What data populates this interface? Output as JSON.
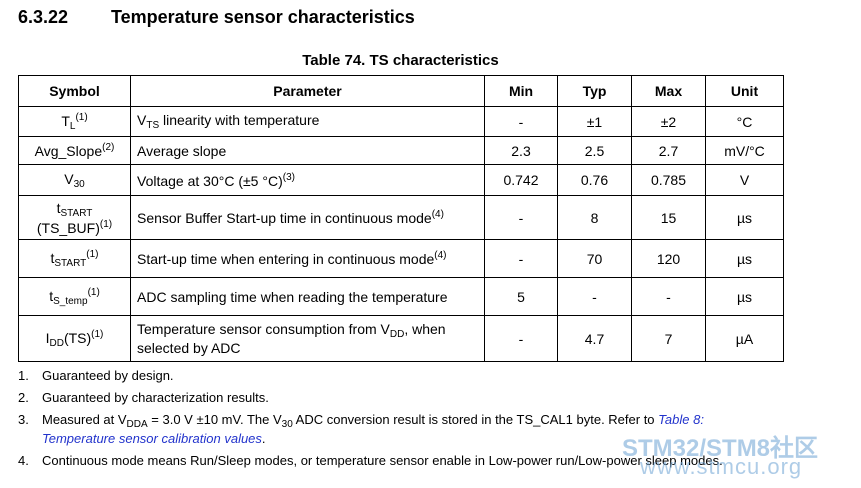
{
  "section": {
    "number": "6.3.22",
    "title": "Temperature sensor characteristics"
  },
  "table": {
    "caption": "Table 74. TS characteristics",
    "header": [
      "Symbol",
      "Parameter",
      "Min",
      "Typ",
      "Max",
      "Unit"
    ],
    "rows": [
      {
        "symbol": [
          [
            "T",
            {
              "text": "L",
              "pos": "sub"
            },
            {
              "text": "(1)",
              "pos": "sup"
            }
          ]
        ],
        "parameter": [
          [
            "V",
            {
              "text": "TS",
              "pos": "sub"
            },
            " linearity with temperature"
          ]
        ],
        "min": "-",
        "typ": "±1",
        "max": "±2",
        "unit": "°C"
      },
      {
        "symbol": [
          [
            "Avg_Slope",
            {
              "text": "(2)",
              "pos": "sup"
            }
          ]
        ],
        "parameter": [
          [
            "Average slope"
          ]
        ],
        "min": "2.3",
        "typ": "2.5",
        "max": "2.7",
        "unit": "mV/°C"
      },
      {
        "symbol": [
          [
            "V",
            {
              "text": "30",
              "pos": "sub"
            }
          ]
        ],
        "parameter": [
          [
            "Voltage at 30°C (±5 °C)",
            {
              "text": "(3)",
              "pos": "sup"
            }
          ]
        ],
        "min": "0.742",
        "typ": "0.76",
        "max": "0.785",
        "unit": "V"
      },
      {
        "symbol": [
          [
            "t",
            {
              "text": "START",
              "pos": "sub"
            }
          ],
          [
            "(TS_BUF)",
            {
              "text": "(1)",
              "pos": "sup"
            }
          ]
        ],
        "parameter": [
          [
            "Sensor Buffer Start-up time in continuous mode",
            {
              "text": "(4)",
              "pos": "sup"
            }
          ]
        ],
        "min": "-",
        "typ": "8",
        "max": "15",
        "unit": "µs"
      },
      {
        "symbol": [
          [
            "t",
            {
              "text": "START",
              "pos": "sub"
            },
            {
              "text": "(1)",
              "pos": "sup"
            }
          ]
        ],
        "parameter": [
          [
            "Start-up time when entering in continuous mode",
            {
              "text": "(4)",
              "pos": "sup"
            }
          ]
        ],
        "min": "-",
        "typ": "70",
        "max": "120",
        "unit": "µs"
      },
      {
        "symbol": [
          [
            "t",
            {
              "text": "S_temp",
              "pos": "sub"
            },
            {
              "text": "(1)",
              "pos": "sup"
            }
          ]
        ],
        "parameter": [
          [
            "ADC sampling time when reading the temperature"
          ]
        ],
        "min": "5",
        "typ": "-",
        "max": "-",
        "unit": "µs"
      },
      {
        "symbol": [
          [
            "I",
            {
              "text": "DD",
              "pos": "sub"
            },
            "(TS)",
            {
              "text": "(1)",
              "pos": "sup"
            }
          ]
        ],
        "parameter": [
          [
            "Temperature sensor consumption from V",
            {
              "text": "DD",
              "pos": "sub"
            },
            ", when"
          ],
          [
            "selected by ADC"
          ]
        ],
        "min": "-",
        "typ": "4.7",
        "max": "7",
        "unit": "µA"
      }
    ]
  },
  "notes": [
    {
      "number": "1.",
      "text": [
        "Guaranteed by design."
      ]
    },
    {
      "number": "2.",
      "text": [
        "Guaranteed by characterization results."
      ]
    },
    {
      "number": "3.",
      "text": [
        "Measured at V",
        {
          "text": "DDA",
          "pos": "sub"
        },
        " = 3.0 V ±10 mV. The V",
        {
          "text": "30",
          "pos": "sub"
        },
        " ADC conversion result is stored in the TS_CAL1 byte. Refer to ",
        {
          "text": "Table 8: Temperature sensor calibration values",
          "pos": "link"
        },
        "."
      ]
    },
    {
      "number": "4.",
      "text": [
        "Continuous mode means Run/Sleep modes, or temperature sensor enable in Low-power run/Low-power sleep modes."
      ]
    }
  ],
  "watermark": {
    "brand": "STM32/STM8社区",
    "url": "www.stmcu.org"
  }
}
